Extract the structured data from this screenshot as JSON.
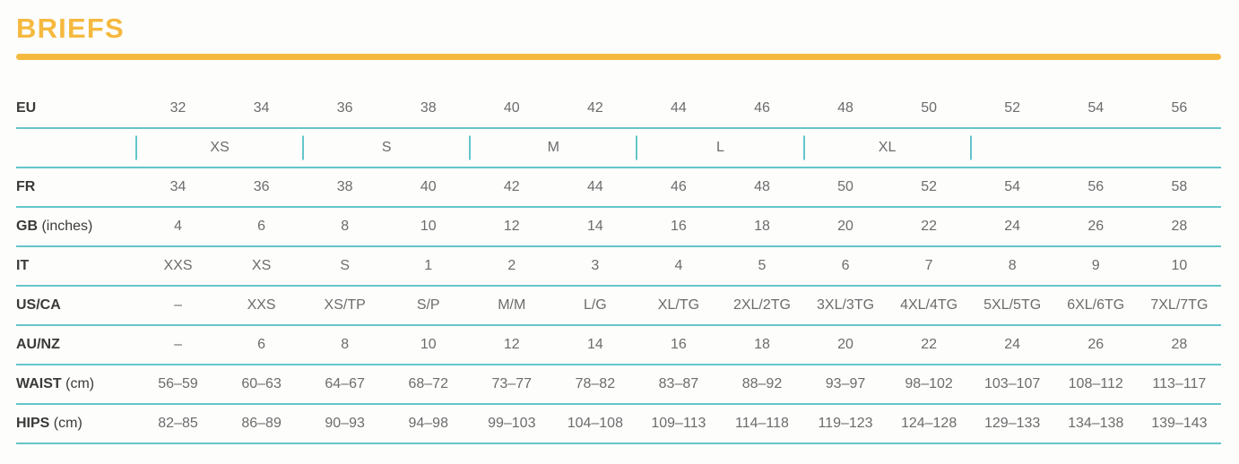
{
  "page": {
    "title": "BRIEFS",
    "accent_color": "#F5B93F",
    "line_color": "#64C5CA",
    "label_color": "#3A3A39",
    "value_color": "#6C6C6C"
  },
  "size_chart": {
    "group_row_after": "eu",
    "size_groups": [
      {
        "label": "XS",
        "span": 2
      },
      {
        "label": "S",
        "span": 2
      },
      {
        "label": "M",
        "span": 2
      },
      {
        "label": "L",
        "span": 2
      },
      {
        "label": "XL",
        "span": 2
      },
      {
        "label": "",
        "span": 3
      }
    ],
    "rows": [
      {
        "key": "eu",
        "label": "EU",
        "label_note": "",
        "values": [
          "32",
          "34",
          "36",
          "38",
          "40",
          "42",
          "44",
          "46",
          "48",
          "50",
          "52",
          "54",
          "56"
        ]
      },
      {
        "key": "fr",
        "label": "FR",
        "label_note": "",
        "values": [
          "34",
          "36",
          "38",
          "40",
          "42",
          "44",
          "46",
          "48",
          "50",
          "52",
          "54",
          "56",
          "58"
        ]
      },
      {
        "key": "gb",
        "label": "GB",
        "label_note": "(inches)",
        "values": [
          "4",
          "6",
          "8",
          "10",
          "12",
          "14",
          "16",
          "18",
          "20",
          "22",
          "24",
          "26",
          "28"
        ]
      },
      {
        "key": "it",
        "label": "IT",
        "label_note": "",
        "values": [
          "XXS",
          "XS",
          "S",
          "1",
          "2",
          "3",
          "4",
          "5",
          "6",
          "7",
          "8",
          "9",
          "10"
        ]
      },
      {
        "key": "us-ca",
        "label": "US/CA",
        "label_note": "",
        "values": [
          "–",
          "XXS",
          "XS/TP",
          "S/P",
          "M/M",
          "L/G",
          "XL/TG",
          "2XL/2TG",
          "3XL/3TG",
          "4XL/4TG",
          "5XL/5TG",
          "6XL/6TG",
          "7XL/7TG"
        ]
      },
      {
        "key": "au-nz",
        "label": "AU/NZ",
        "label_note": "",
        "values": [
          "–",
          "6",
          "8",
          "10",
          "12",
          "14",
          "16",
          "18",
          "20",
          "22",
          "24",
          "26",
          "28"
        ]
      },
      {
        "key": "waist",
        "label": "WAIST",
        "label_note": "(cm)",
        "values": [
          "56–59",
          "60–63",
          "64–67",
          "68–72",
          "73–77",
          "78–82",
          "83–87",
          "88–92",
          "93–97",
          "98–102",
          "103–107",
          "108–112",
          "113–117"
        ]
      },
      {
        "key": "hips",
        "label": "HIPS",
        "label_note": "(cm)",
        "values": [
          "82–85",
          "86–89",
          "90–93",
          "94–98",
          "99–103",
          "104–108",
          "109–113",
          "114–118",
          "119–123",
          "124–128",
          "129–133",
          "134–138",
          "139–143"
        ]
      }
    ]
  }
}
